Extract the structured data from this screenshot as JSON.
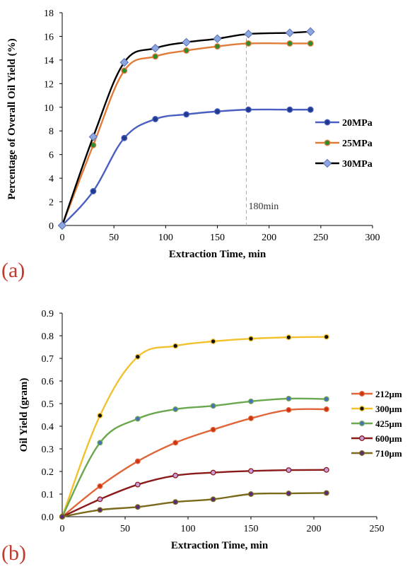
{
  "chart_data": [
    {
      "type": "line",
      "panel_label": "(a)",
      "xlabel": "Extraction Time, min",
      "ylabel": "Percentage of Overall Oil Yield (%)",
      "xlim": [
        0,
        300
      ],
      "ylim": [
        0,
        18
      ],
      "xticks": [
        0,
        50,
        100,
        150,
        200,
        250,
        300
      ],
      "yticks": [
        0,
        2,
        4,
        6,
        8,
        10,
        12,
        14,
        16,
        18
      ],
      "grid": false,
      "legend_position": "right",
      "annotation": {
        "text": "180min",
        "x": 178
      },
      "series": [
        {
          "name": "20MPa",
          "color": "#4a5fc1",
          "marker": "circle",
          "marker_fill": "#1f3a8a",
          "x": [
            0,
            30,
            60,
            90,
            120,
            150,
            180,
            220,
            240
          ],
          "y": [
            0,
            2.9,
            7.4,
            9.0,
            9.4,
            9.65,
            9.8,
            9.8,
            9.8
          ]
        },
        {
          "name": "25MPa",
          "color": "#e07b39",
          "marker": "circle",
          "marker_fill": "#2e8b2e",
          "x": [
            0,
            30,
            60,
            90,
            120,
            150,
            180,
            220,
            240
          ],
          "y": [
            0,
            6.8,
            13.1,
            14.3,
            14.8,
            15.15,
            15.4,
            15.4,
            15.4
          ]
        },
        {
          "name": "30MPa",
          "color": "#000000",
          "marker": "diamond",
          "marker_fill": "#8ea6e0",
          "x": [
            0,
            30,
            60,
            90,
            120,
            150,
            180,
            220,
            240
          ],
          "y": [
            0,
            7.5,
            13.8,
            15.0,
            15.5,
            15.8,
            16.2,
            16.3,
            16.4
          ]
        }
      ]
    },
    {
      "type": "line",
      "panel_label": "(b)",
      "xlabel": "Extraction Time, min",
      "ylabel": "Oil Yield (gram)",
      "xlim": [
        0,
        250
      ],
      "ylim": [
        0,
        0.9
      ],
      "xticks": [
        0,
        50,
        100,
        150,
        200,
        250
      ],
      "yticks": [
        0,
        0.1,
        0.2,
        0.3,
        0.4,
        0.5,
        0.6,
        0.7,
        0.8,
        0.9
      ],
      "grid": false,
      "legend_position": "right",
      "series": [
        {
          "name": "212μm",
          "color": "#e0663a",
          "marker": "circle",
          "marker_fill": "#cc3311",
          "x": [
            0,
            30,
            60,
            90,
            120,
            150,
            180,
            210
          ],
          "y": [
            0,
            0.135,
            0.245,
            0.327,
            0.385,
            0.435,
            0.472,
            0.475
          ]
        },
        {
          "name": "300μm",
          "color": "#f2c12e",
          "marker": "circle",
          "marker_fill": "#111111",
          "x": [
            0,
            30,
            60,
            90,
            120,
            150,
            180,
            210
          ],
          "y": [
            0,
            0.447,
            0.707,
            0.755,
            0.775,
            0.787,
            0.793,
            0.795
          ]
        },
        {
          "name": "425μm",
          "color": "#6aa84f",
          "marker": "circle",
          "marker_fill": "#4a6fc0",
          "x": [
            0,
            30,
            60,
            90,
            120,
            150,
            180,
            210
          ],
          "y": [
            0,
            0.327,
            0.433,
            0.475,
            0.49,
            0.51,
            0.522,
            0.52
          ]
        },
        {
          "name": "600μm",
          "color": "#8b1a1a",
          "marker": "circle",
          "marker_fill": "#c7a0e0",
          "x": [
            0,
            30,
            60,
            90,
            120,
            150,
            180,
            210
          ],
          "y": [
            0,
            0.077,
            0.142,
            0.182,
            0.195,
            0.202,
            0.206,
            0.207
          ]
        },
        {
          "name": "710μm",
          "color": "#7a6a1a",
          "marker": "circle",
          "marker_fill": "#5a2a7a",
          "x": [
            0,
            30,
            60,
            90,
            120,
            150,
            180,
            210
          ],
          "y": [
            0,
            0.03,
            0.043,
            0.065,
            0.077,
            0.1,
            0.103,
            0.105
          ]
        }
      ]
    }
  ]
}
